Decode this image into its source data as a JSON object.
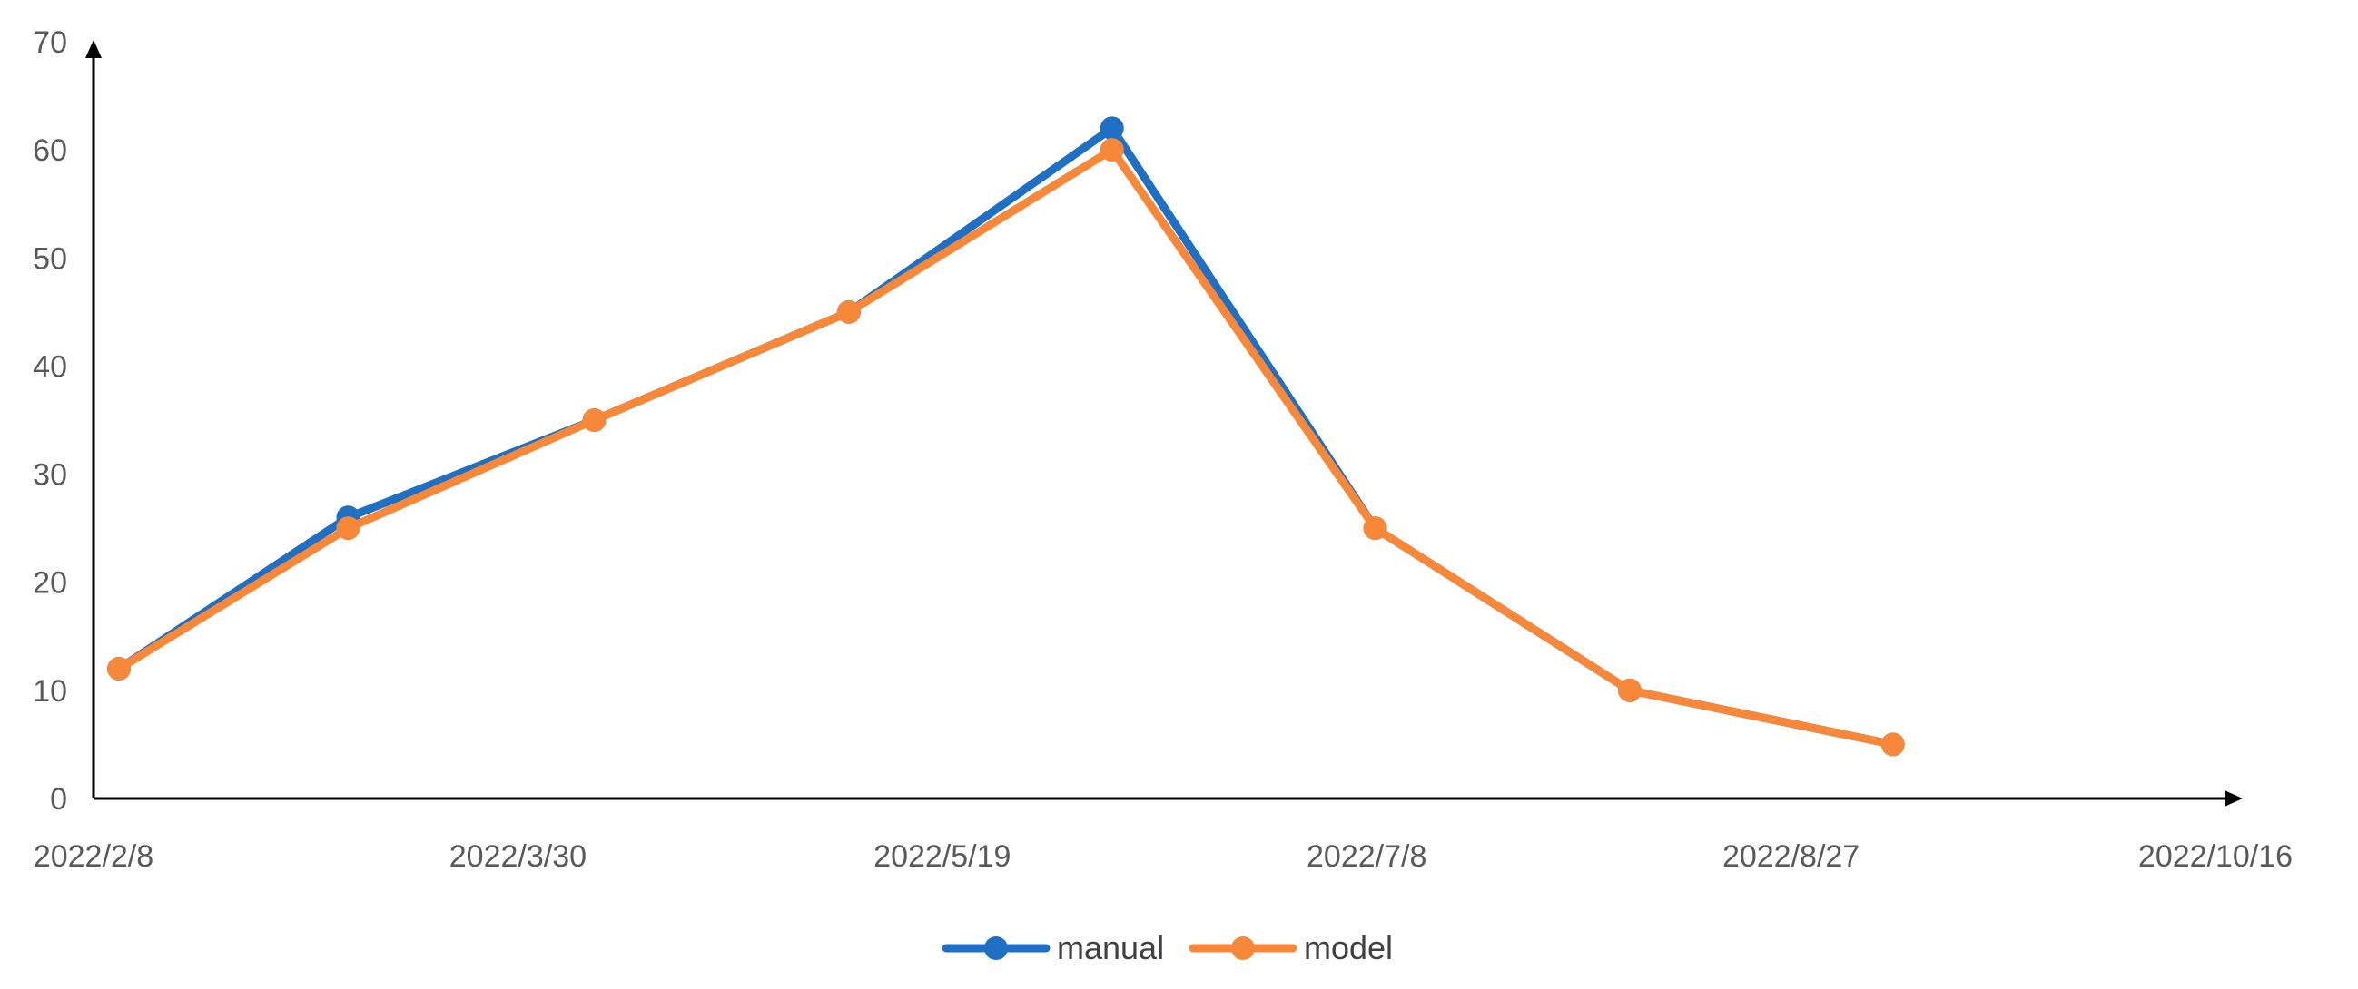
{
  "chart_data": {
    "type": "line",
    "title": "",
    "xlabel": "",
    "ylabel": "",
    "xlim": [
      "2022/2/8",
      "2022/10/16"
    ],
    "ylim": [
      0,
      70
    ],
    "x_ticks": [
      "2022/2/8",
      "2022/3/30",
      "2022/5/19",
      "2022/7/8",
      "2022/8/27",
      "2022/10/16"
    ],
    "y_ticks": [
      0,
      10,
      20,
      30,
      40,
      50,
      60,
      70
    ],
    "grid": false,
    "legend_position": "bottom-center",
    "x": [
      "2022/2/11",
      "2022/3/10",
      "2022/4/8",
      "2022/5/8",
      "2022/6/8",
      "2022/7/9",
      "2022/8/8",
      "2022/9/8"
    ],
    "series": [
      {
        "name": "manual",
        "color": "#1F6FC5",
        "values": [
          12,
          26,
          35,
          45,
          62,
          25,
          10,
          5
        ]
      },
      {
        "name": "model",
        "color": "#F7883A",
        "values": [
          12,
          25,
          35,
          45,
          60,
          25,
          10,
          5
        ]
      }
    ]
  }
}
